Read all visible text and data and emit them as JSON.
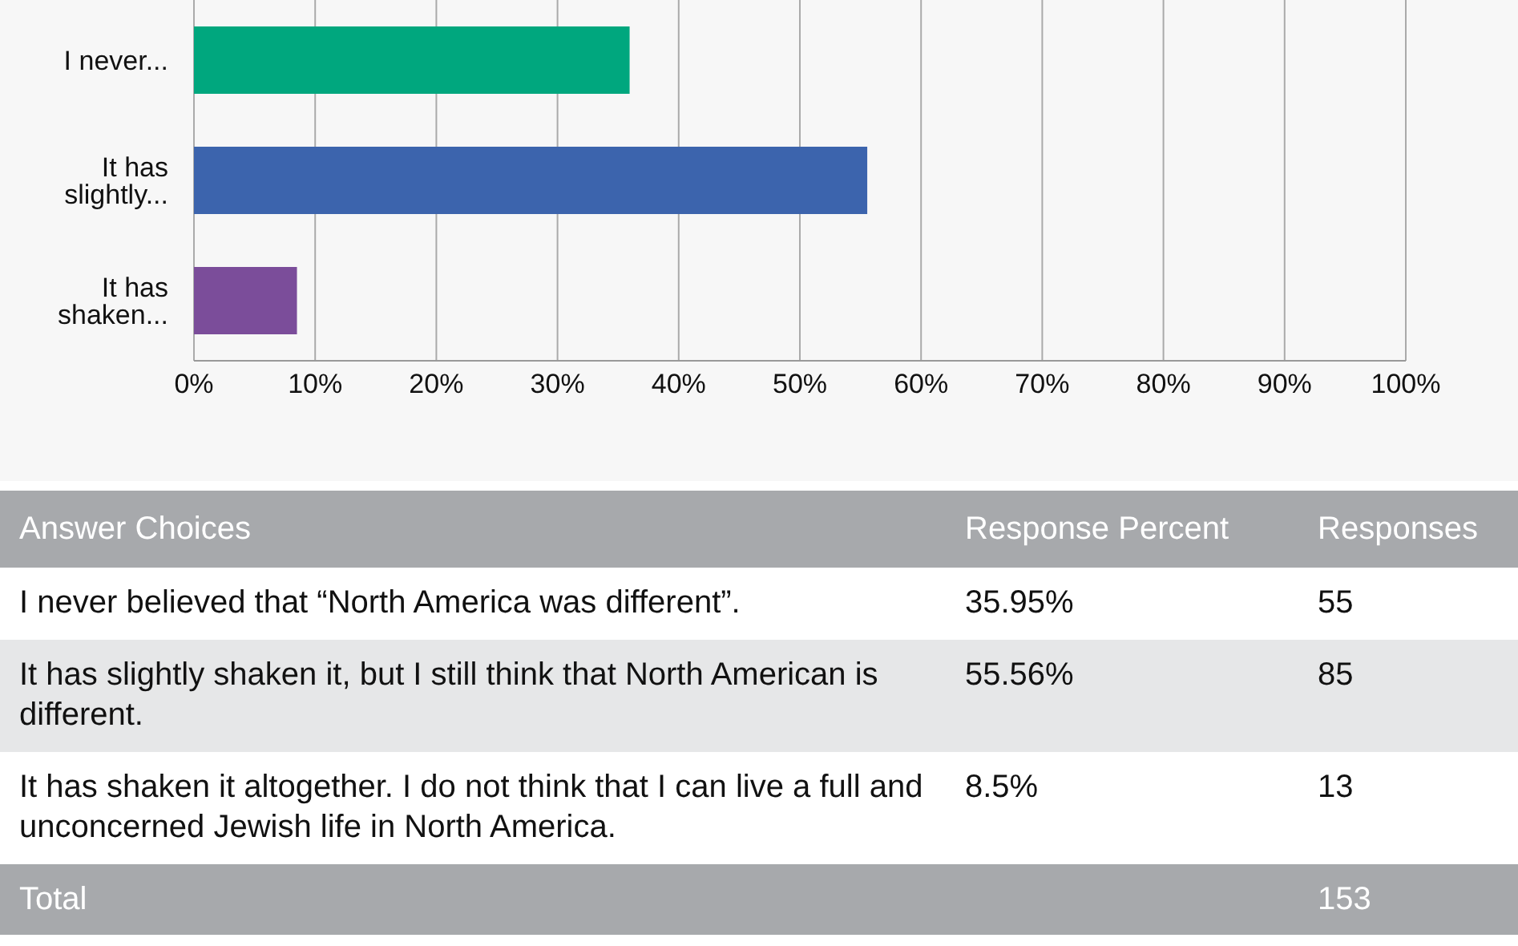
{
  "chart_data": {
    "type": "bar",
    "orientation": "horizontal",
    "categories": [
      "I never...",
      "It has slightly...",
      "It has shaken..."
    ],
    "values": [
      35.95,
      55.56,
      8.5
    ],
    "colors": [
      "#00a77e",
      "#3c64ad",
      "#7b4d9a"
    ],
    "xlim": [
      0,
      100
    ],
    "xticks": [
      {
        "value": 0,
        "label": "0%"
      },
      {
        "value": 10,
        "label": "10%"
      },
      {
        "value": 20,
        "label": "20%"
      },
      {
        "value": 30,
        "label": "30%"
      },
      {
        "value": 40,
        "label": "40%"
      },
      {
        "value": 50,
        "label": "50%"
      },
      {
        "value": 60,
        "label": "60%"
      },
      {
        "value": 70,
        "label": "70%"
      },
      {
        "value": 80,
        "label": "80%"
      },
      {
        "value": 90,
        "label": "90%"
      },
      {
        "value": 100,
        "label": "100%"
      }
    ],
    "grid": "x",
    "annotations": [
      "Answer Choices",
      "Response Percent",
      "Responses",
      "I never believed that “North America was different”.",
      "35.95%",
      "55",
      "It has slightly shaken it, but I still think that North American is different.",
      "55.56%",
      "85",
      "It has shaken it altogether. I do not think that I can live a full and unconcerned Jewish life in North America.",
      "8.5%",
      "13",
      "Total",
      "153"
    ]
  }
}
